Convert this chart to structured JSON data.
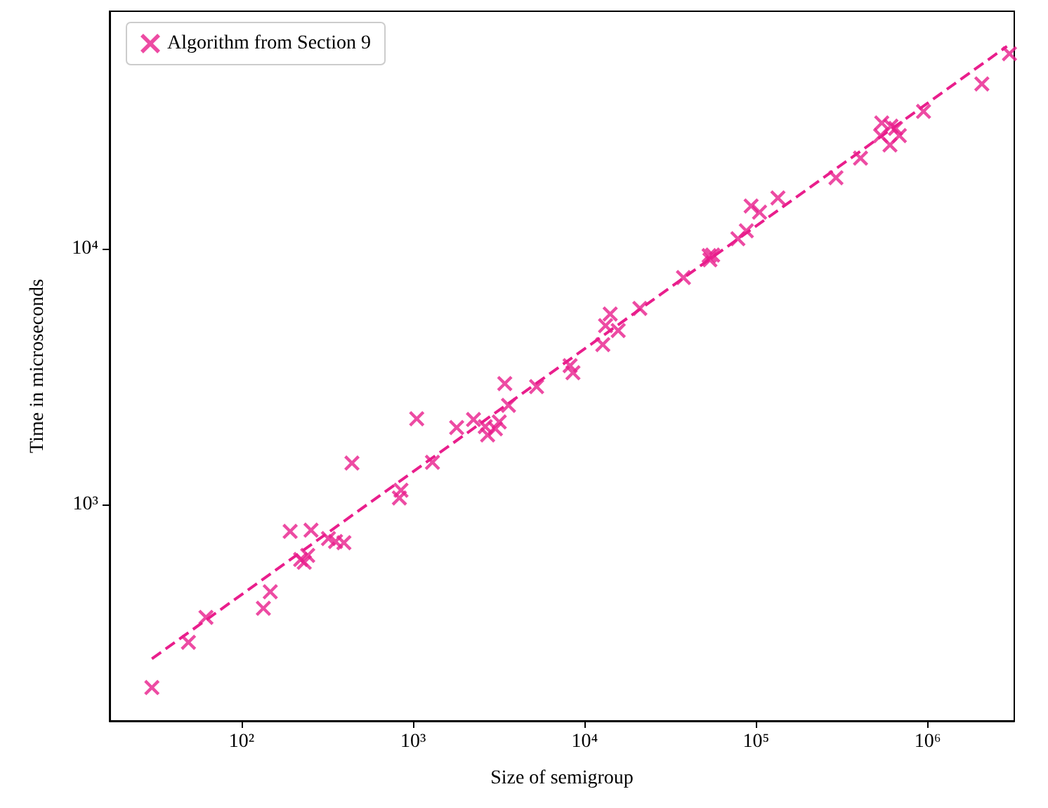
{
  "chart_data": {
    "type": "scatter",
    "xlabel": "Size of semigroup",
    "ylabel": "Time in microseconds",
    "log": "xy",
    "grid": false,
    "legend": "top left",
    "marker": "cross",
    "xlim": [
      17,
      3200000
    ],
    "ylim": [
      143,
      85000
    ],
    "xticks": [
      {
        "value": 100,
        "label": "10²"
      },
      {
        "value": 1000,
        "label": "10³"
      },
      {
        "value": 10000,
        "label": "10⁴"
      },
      {
        "value": 100000,
        "label": "10⁵"
      },
      {
        "value": 1000000,
        "label": "10⁶"
      }
    ],
    "yticks": [
      {
        "value": 1000,
        "label": "10³"
      },
      {
        "value": 10000,
        "label": "10⁴"
      }
    ],
    "series": [
      {
        "name": "Algorithm from Section 9",
        "color": "#e91e8c",
        "x": [
          30,
          49,
          62,
          134,
          147,
          192,
          254,
          221,
          243,
          232,
          321,
          353,
          395,
          440,
          832,
          850,
          1297,
          1795,
          1050,
          2250,
          2635,
          2720,
          3020,
          3180,
          3600,
          3425,
          5250,
          8230,
          8550,
          12770,
          13250,
          14100,
          15700,
          21000,
          37700,
          53200,
          55800,
          53800,
          78300,
          87700,
          93500,
          104700,
          134000,
          292000,
          406000,
          540000,
          532000,
          603000,
          650000,
          684000,
          611000,
          946000,
          2070000,
          3000000
        ],
        "values": [
          193,
          290,
          363,
          394,
          457,
          787,
          796,
          611,
          634,
          596,
          738,
          719,
          711,
          1456,
          1064,
          1140,
          1466,
          2005,
          2170,
          2155,
          2022,
          1876,
          1983,
          2108,
          2448,
          2978,
          2898,
          3500,
          3283,
          4230,
          5015,
          5570,
          4800,
          5860,
          7730,
          9420,
          9470,
          9070,
          10970,
          11780,
          14730,
          13930,
          15840,
          19000,
          22650,
          31100,
          27750,
          25500,
          29600,
          27750,
          30200,
          34500,
          44200,
          58000
        ]
      },
      {
        "type": "line",
        "color": "#e91e8c",
        "line_style": "dashed",
        "marker": "none",
        "x": [
          30,
          2900000
        ],
        "values": [
          250,
          62000
        ]
      }
    ]
  }
}
